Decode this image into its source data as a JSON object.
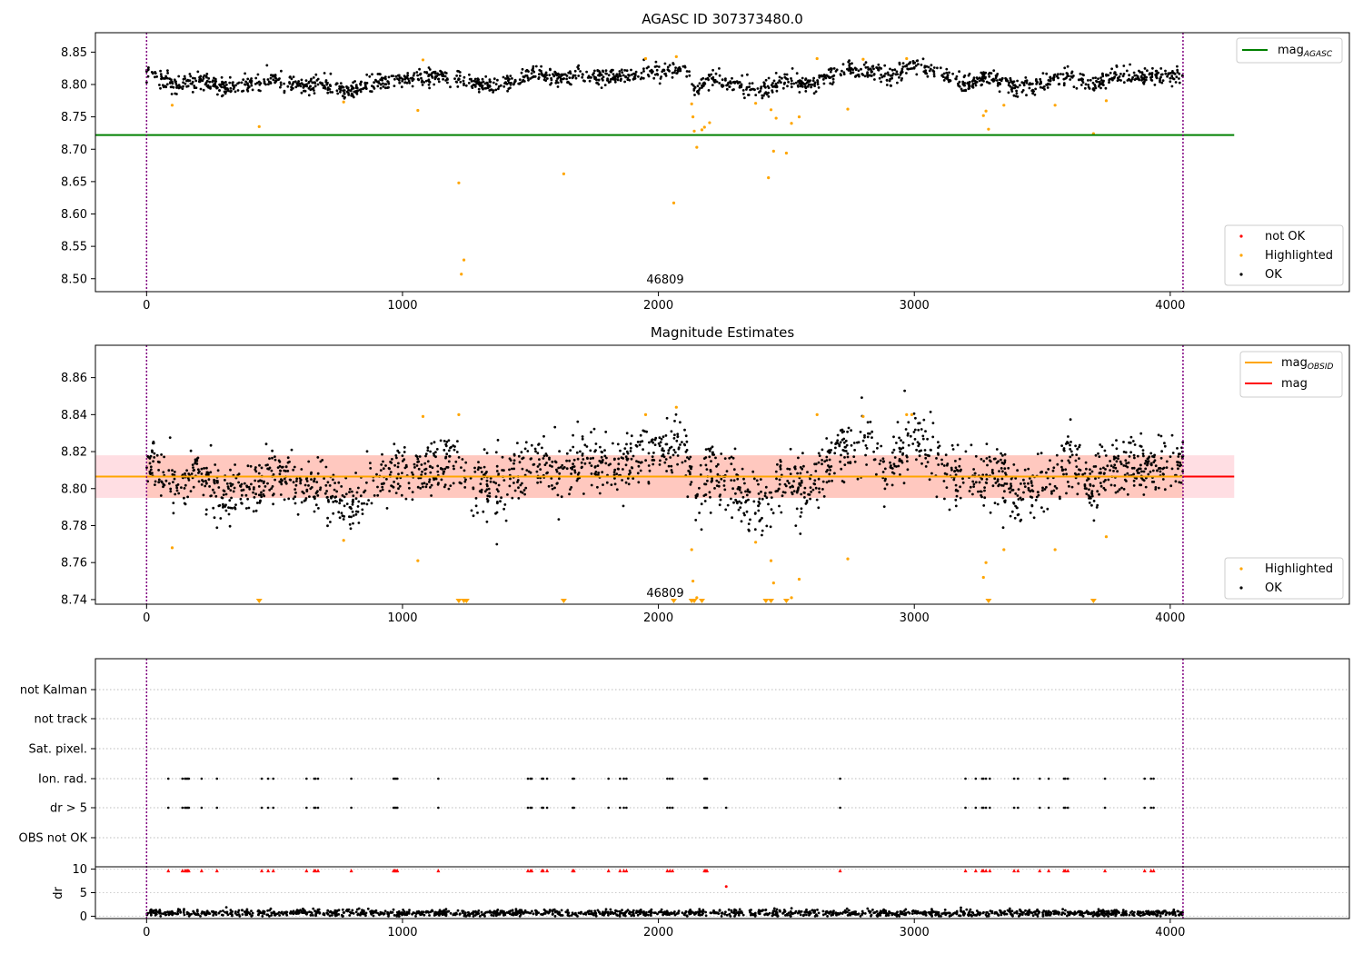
{
  "chart_data": [
    {
      "type": "scatter",
      "title": "AGASC ID 307373480.0",
      "xlabel": "",
      "ylabel": "",
      "xlim": [
        -200,
        4700
      ],
      "ylim": [
        8.48,
        8.88
      ],
      "xticks": [
        0,
        1000,
        2000,
        3000,
        4000
      ],
      "yticks": [
        8.5,
        8.55,
        8.6,
        8.65,
        8.7,
        8.75,
        8.8,
        8.85
      ],
      "ytick_labels": [
        "8.50",
        "8.55",
        "8.60",
        "8.65",
        "8.70",
        "8.75",
        "8.80",
        "8.85"
      ],
      "obsid_label": "46809",
      "obsid_label_x": 2000,
      "vlines": [
        0,
        4050
      ],
      "hlines": [
        {
          "name": "mag_AGASC",
          "y": 8.722,
          "x_range": [
            -200,
            4250
          ],
          "color": "#008000"
        }
      ],
      "line_legend": [
        {
          "label": "mag",
          "sub": "AGASC",
          "color": "#008000"
        }
      ],
      "point_legend": [
        {
          "label": "not OK",
          "color": "#ff0000"
        },
        {
          "label": "Highlighted",
          "color": "#ffa500"
        },
        {
          "label": "OK",
          "color": "#000000"
        }
      ],
      "series": [
        {
          "name": "OK",
          "color": "#000000",
          "generator": {
            "x_range": [
              0,
              4050
            ],
            "count": 1700,
            "base": 8.805,
            "noise": 0.012
          },
          "x": [
            0,
            100,
            200,
            300,
            400,
            500,
            600,
            700,
            800,
            900,
            1000,
            1100,
            1200,
            1300,
            1400,
            1500,
            1600,
            1700,
            1800,
            1900,
            2000,
            2100,
            2150,
            2200,
            2300,
            2400,
            2500,
            2600,
            2700,
            2800,
            2900,
            3000,
            3100,
            3200,
            3300,
            3400,
            3500,
            3600,
            3700,
            3800,
            3900,
            4050
          ],
          "y": [
            8.82,
            8.8,
            8.81,
            8.795,
            8.8,
            8.808,
            8.8,
            8.8,
            8.79,
            8.805,
            8.81,
            8.81,
            8.815,
            8.8,
            8.8,
            8.815,
            8.81,
            8.815,
            8.81,
            8.815,
            8.82,
            8.825,
            8.79,
            8.81,
            8.8,
            8.79,
            8.805,
            8.8,
            8.82,
            8.825,
            8.81,
            8.83,
            8.815,
            8.8,
            8.81,
            8.795,
            8.8,
            8.815,
            8.8,
            8.815,
            8.81,
            8.815
          ]
        },
        {
          "name": "Highlighted",
          "color": "#ffa500",
          "x": [
            100,
            440,
            770,
            1060,
            1080,
            1220,
            1230,
            1240,
            1630,
            1950,
            2060,
            2070,
            2130,
            2135,
            2140,
            2150,
            2170,
            2180,
            2200,
            2380,
            2430,
            2440,
            2450,
            2460,
            2500,
            2520,
            2550,
            2620,
            2740,
            2800,
            2970,
            3270,
            3280,
            3290,
            3350,
            3550,
            3700,
            3750
          ],
          "y": [
            8.768,
            8.735,
            8.773,
            8.76,
            8.838,
            8.648,
            8.507,
            8.529,
            8.662,
            8.84,
            8.617,
            8.843,
            8.77,
            8.75,
            8.728,
            8.703,
            8.73,
            8.734,
            8.741,
            8.771,
            8.656,
            8.761,
            8.697,
            8.748,
            8.694,
            8.74,
            8.75,
            8.84,
            8.762,
            8.839,
            8.84,
            8.752,
            8.759,
            8.731,
            8.768,
            8.768,
            8.724,
            8.775
          ]
        }
      ]
    },
    {
      "type": "scatter",
      "title": "Magnitude Estimates",
      "xlabel": "",
      "ylabel": "",
      "xlim": [
        -200,
        4700
      ],
      "ylim": [
        8.7375,
        8.8775
      ],
      "xticks": [
        0,
        1000,
        2000,
        3000,
        4000
      ],
      "yticks": [
        8.74,
        8.76,
        8.78,
        8.8,
        8.82,
        8.84,
        8.86
      ],
      "ytick_labels": [
        "8.74",
        "8.76",
        "8.78",
        "8.80",
        "8.82",
        "8.84",
        "8.86"
      ],
      "obsid_label": "46809",
      "obsid_label_x": 2000,
      "vlines": [
        0,
        4050
      ],
      "band": {
        "y0": 8.795,
        "y1": 8.818,
        "x_range": [
          -200,
          4250
        ]
      },
      "hlines": [
        {
          "name": "mag",
          "y": 8.8065,
          "x_range": [
            -200,
            4250
          ],
          "color": "#ff0000"
        },
        {
          "name": "mag_OBSID",
          "y": 8.8065,
          "x_range": [
            -200,
            4050
          ],
          "color": "#ffa500"
        }
      ],
      "line_legend": [
        {
          "label": "mag",
          "sub": "OBSID",
          "color": "#ffa500"
        },
        {
          "label": "mag",
          "sub": "",
          "color": "#ff0000"
        }
      ],
      "point_legend": [
        {
          "label": "Highlighted",
          "color": "#ffa500"
        },
        {
          "label": "OK",
          "color": "#000000"
        }
      ],
      "clipped_markers_x": [
        440,
        1220,
        1240,
        1250,
        1630,
        2060,
        2130,
        2140,
        2170,
        2420,
        2440,
        2500,
        3290,
        3700
      ],
      "series": [
        {
          "name": "OK",
          "color": "#000000",
          "generator": {
            "x_range": [
              0,
              4050
            ],
            "count": 2000,
            "base": 8.805,
            "noise": 0.01
          },
          "x": [
            0,
            100,
            200,
            300,
            400,
            500,
            600,
            700,
            800,
            900,
            1000,
            1100,
            1200,
            1300,
            1400,
            1500,
            1600,
            1700,
            1800,
            1900,
            2000,
            2100,
            2150,
            2200,
            2300,
            2400,
            2500,
            2600,
            2700,
            2800,
            2900,
            3000,
            3100,
            3200,
            3300,
            3400,
            3500,
            3600,
            3700,
            3800,
            3900,
            4050
          ],
          "y": [
            8.82,
            8.8,
            8.81,
            8.795,
            8.8,
            8.808,
            8.8,
            8.8,
            8.79,
            8.805,
            8.81,
            8.81,
            8.815,
            8.8,
            8.8,
            8.815,
            8.81,
            8.815,
            8.81,
            8.815,
            8.82,
            8.825,
            8.79,
            8.81,
            8.8,
            8.79,
            8.805,
            8.8,
            8.82,
            8.825,
            8.81,
            8.83,
            8.815,
            8.8,
            8.81,
            8.795,
            8.8,
            8.815,
            8.8,
            8.815,
            8.81,
            8.815
          ]
        },
        {
          "name": "Highlighted",
          "color": "#ffa500",
          "x": [
            100,
            770,
            1060,
            1080,
            1220,
            1950,
            2070,
            2130,
            2135,
            2150,
            2380,
            2440,
            2450,
            2520,
            2550,
            2620,
            2740,
            2800,
            2970,
            2990,
            3270,
            3280,
            3350,
            3550,
            3750
          ],
          "y": [
            8.768,
            8.772,
            8.761,
            8.839,
            8.84,
            8.84,
            8.844,
            8.767,
            8.75,
            8.741,
            8.771,
            8.761,
            8.749,
            8.741,
            8.751,
            8.84,
            8.762,
            8.839,
            8.84,
            8.84,
            8.752,
            8.76,
            8.767,
            8.767,
            8.774
          ]
        }
      ]
    },
    {
      "type": "scatter",
      "title": "",
      "xlabel": "",
      "ylabel": "",
      "xlim": [
        -200,
        4700
      ],
      "xticks": [
        0,
        1000,
        2000,
        3000,
        4000
      ],
      "vlines": [
        0,
        4050
      ],
      "flag_rows": [
        "not Kalman",
        "not track",
        "Sat. pixel.",
        "Ion. rad.",
        "dr > 5",
        "OBS not OK"
      ],
      "flag_x": [
        85,
        140,
        150,
        155,
        160,
        165,
        215,
        275,
        450,
        475,
        495,
        625,
        655,
        660,
        670,
        800,
        965,
        970,
        975,
        980,
        1140,
        1490,
        1500,
        1505,
        1545,
        1550,
        1565,
        1665,
        1670,
        1805,
        1850,
        1865,
        1875,
        2035,
        2045,
        2055,
        2180,
        2185,
        2190,
        2710,
        3200,
        3240,
        3265,
        3270,
        3280,
        3295,
        3390,
        3405,
        3490,
        3525,
        3585,
        3590,
        3600,
        3745,
        3900,
        3925,
        3935
      ],
      "dr_extra_x": [
        2265
      ],
      "dr_ylabel": "dr",
      "dr_ylim": [
        -0.5,
        10.5
      ],
      "dr_yticks": [
        0,
        5,
        10
      ],
      "dr_ytick_labels": [
        "0",
        "5",
        "10"
      ],
      "dr_series": {
        "name": "dr",
        "color": "#000000",
        "generator": {
          "x_range": [
            0,
            4050
          ],
          "count": 1500,
          "base": 0.7,
          "noise": 0.35
        }
      },
      "dr_outliers": {
        "color": "#ff0000",
        "y": 9.7,
        "extra": [
          {
            "x": 2265,
            "y": 6.3
          }
        ]
      }
    }
  ]
}
